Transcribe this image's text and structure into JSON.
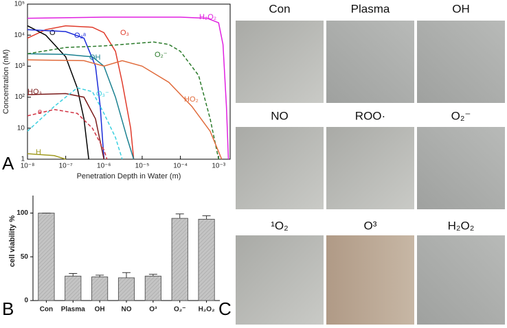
{
  "chart_data": [
    {
      "type": "line",
      "xscale": "log",
      "yscale": "log",
      "x_label": "Penetration Depth in Water (m)",
      "y_label": "Concentration (nM)",
      "xlim": [
        1e-08,
        0.002
      ],
      "xticks": [
        {
          "value": 1e-08,
          "label": "10⁻⁸"
        },
        {
          "value": 1e-07,
          "label": "10⁻⁷"
        },
        {
          "value": 1e-06,
          "label": "10⁻⁶"
        },
        {
          "value": 1e-05,
          "label": "10⁻⁵"
        },
        {
          "value": 0.0001,
          "label": "10⁻⁴"
        },
        {
          "value": 0.001,
          "label": "10⁻³"
        }
      ],
      "ylim": [
        1,
        100000
      ],
      "yticks": [
        1,
        10,
        {
          "value": 100,
          "label": "10²"
        },
        {
          "value": 1000,
          "label": "10³"
        },
        {
          "value": 10000,
          "label": "10⁴"
        },
        {
          "value": 100000,
          "label": "10⁵"
        }
      ],
      "series": [
        {
          "name": "H₂O₂",
          "color": "#e020e0",
          "dashed": false,
          "x": [
            1e-08,
            1e-06,
            0.0001,
            0.0005,
            0.001,
            0.0013,
            0.0016,
            0.0018
          ],
          "values": [
            35000,
            38000,
            38000,
            35000,
            25000,
            5000,
            50,
            1
          ]
        },
        {
          "name": "O₃",
          "color": "#e03a2a",
          "dashed": false,
          "x": [
            1e-08,
            3e-08,
            1e-07,
            5e-07,
            1e-06,
            2e-06,
            3e-06,
            5e-06,
            6e-06
          ],
          "values": [
            8000,
            15000,
            20000,
            18000,
            12000,
            3000,
            300,
            10,
            1
          ]
        },
        {
          "name": "O",
          "color": "#000000",
          "dashed": false,
          "x": [
            1e-08,
            3e-08,
            1e-07,
            2e-07,
            3e-07,
            4e-07
          ],
          "values": [
            20000,
            10000,
            2000,
            200,
            20,
            1
          ]
        },
        {
          "name": "O₂ᵃ",
          "color": "#1a2ad8",
          "dashed": false,
          "x": [
            1e-08,
            1e-07,
            3e-07,
            6e-07,
            8e-07,
            1e-06
          ],
          "values": [
            15000,
            13000,
            8000,
            1000,
            50,
            1
          ]
        },
        {
          "name": "OH",
          "color": "#1a8090",
          "dashed": false,
          "x": [
            1e-08,
            1e-07,
            5e-07,
            1e-06,
            2e-06,
            4e-06,
            6e-06
          ],
          "values": [
            2500,
            2400,
            2000,
            1000,
            100,
            5,
            1
          ]
        },
        {
          "name": "O₂⁻",
          "color": "#2a7a2a",
          "dashed": true,
          "x": [
            1e-08,
            1e-07,
            1e-06,
            2e-05,
            5e-05,
            0.0001,
            0.0003,
            0.0006,
            0.001
          ],
          "values": [
            2500,
            4000,
            4500,
            6000,
            5000,
            3000,
            500,
            20,
            1
          ]
        },
        {
          "name": "HO₂",
          "color": "#e06a3a",
          "dashed": false,
          "x": [
            1e-08,
            3e-07,
            1e-06,
            3e-06,
            1e-05,
            5e-05,
            0.0002,
            0.0006,
            0.0012
          ],
          "values": [
            1600,
            1500,
            1000,
            1500,
            1000,
            300,
            50,
            8,
            1
          ]
        },
        {
          "name": "HO₃",
          "color": "#7a1a1a",
          "dashed": false,
          "x": [
            1e-08,
            1e-07,
            3e-07,
            6e-07,
            1e-06
          ],
          "values": [
            120,
            130,
            100,
            20,
            1
          ]
        },
        {
          "name": "O₃⁻",
          "color": "#3ad0e0",
          "dashed": true,
          "x": [
            1e-08,
            5e-08,
            2e-07,
            5e-07,
            1e-06,
            2e-06,
            3e-06
          ],
          "values": [
            8,
            50,
            200,
            150,
            30,
            5,
            1
          ]
        },
        {
          "name": "e",
          "color": "#d03040",
          "dashed": true,
          "x": [
            1e-08,
            5e-08,
            2e-07,
            5e-07,
            1e-06,
            1.2e-06
          ],
          "values": [
            25,
            40,
            30,
            10,
            2,
            1
          ]
        },
        {
          "name": "H",
          "color": "#a09a20",
          "dashed": false,
          "x": [
            1e-08,
            5e-08,
            1e-07
          ],
          "values": [
            1.5,
            1.3,
            1
          ]
        }
      ]
    },
    {
      "type": "bar",
      "y_label": "cell viability %",
      "categories": [
        "Con",
        "Plasma",
        "OH",
        "NO",
        "O³",
        "O₂⁻",
        "H₂O₂"
      ],
      "values": [
        100,
        28,
        27,
        26,
        28,
        94,
        93
      ],
      "errors": [
        0,
        3,
        2,
        6,
        2,
        5,
        4
      ],
      "color": "#b8b8b8",
      "ylim": [
        0,
        120
      ],
      "yticks": [
        0,
        50,
        100
      ]
    }
  ],
  "panel_labels": [
    "A",
    "B",
    "C"
  ],
  "images": [
    {
      "label": "Con"
    },
    {
      "label": "Plasma"
    },
    {
      "label": "OH"
    },
    {
      "label": "NO"
    },
    {
      "label": "ROO·"
    },
    {
      "label": "O₂⁻"
    },
    {
      "label": "¹O₂"
    },
    {
      "label": "O³"
    },
    {
      "label": "H₂O₂"
    }
  ]
}
